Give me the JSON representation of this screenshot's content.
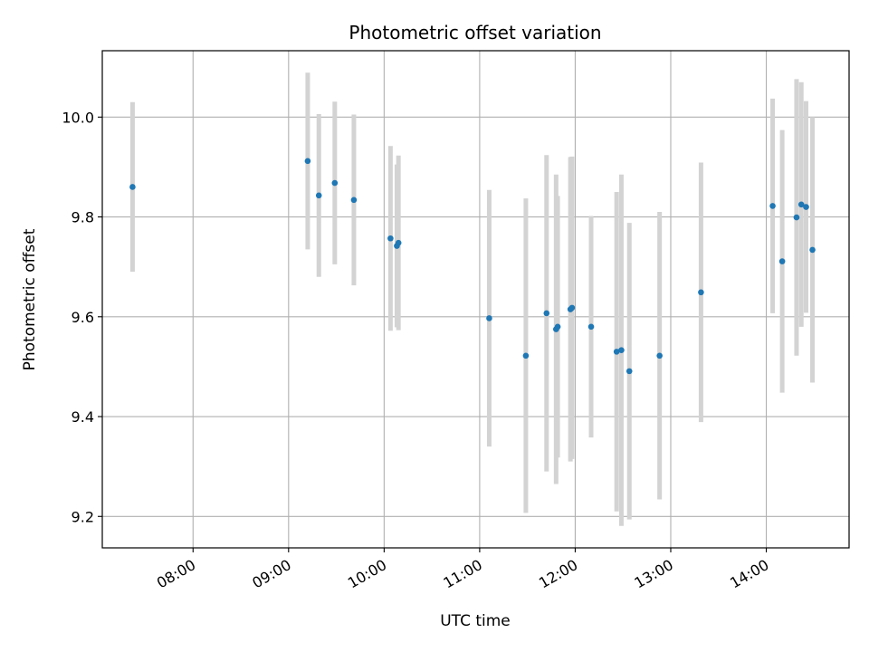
{
  "chart_data": {
    "type": "scatter",
    "title": "Photometric offset variation",
    "xlabel": "UTC time",
    "ylabel": "Photometric offset",
    "x_ticks": [
      "08:00",
      "09:00",
      "10:00",
      "11:00",
      "12:00",
      "13:00",
      "14:00"
    ],
    "y_ticks": [
      "9.2",
      "9.4",
      "9.6",
      "9.8",
      "10.0"
    ],
    "xlim": [
      "07:03",
      "14:52"
    ],
    "ylim": [
      9.137,
      10.133
    ],
    "grid": true,
    "marker_color": "#1f77b4",
    "errorbar_color": "#d3d3d3",
    "points": [
      {
        "x": "07:22",
        "y": 9.86,
        "err": 0.17
      },
      {
        "x": "09:12",
        "y": 9.912,
        "err": 0.177
      },
      {
        "x": "09:19",
        "y": 9.843,
        "err": 0.163
      },
      {
        "x": "09:29",
        "y": 9.868,
        "err": 0.163
      },
      {
        "x": "09:41",
        "y": 9.834,
        "err": 0.171
      },
      {
        "x": "10:04",
        "y": 9.757,
        "err": 0.185
      },
      {
        "x": "10:08",
        "y": 9.742,
        "err": 0.163
      },
      {
        "x": "10:09",
        "y": 9.748,
        "err": 0.175
      },
      {
        "x": "11:06",
        "y": 9.597,
        "err": 0.257
      },
      {
        "x": "11:29",
        "y": 9.522,
        "err": 0.315
      },
      {
        "x": "11:42",
        "y": 9.607,
        "err": 0.317
      },
      {
        "x": "11:48",
        "y": 9.575,
        "err": 0.31
      },
      {
        "x": "11:49",
        "y": 9.58,
        "err": 0.262
      },
      {
        "x": "11:57",
        "y": 9.615,
        "err": 0.305
      },
      {
        "x": "11:58",
        "y": 9.618,
        "err": 0.303
      },
      {
        "x": "12:10",
        "y": 9.58,
        "err": 0.222
      },
      {
        "x": "12:26",
        "y": 9.53,
        "err": 0.32
      },
      {
        "x": "12:29",
        "y": 9.533,
        "err": 0.352
      },
      {
        "x": "12:34",
        "y": 9.491,
        "err": 0.297
      },
      {
        "x": "12:53",
        "y": 9.522,
        "err": 0.288
      },
      {
        "x": "13:19",
        "y": 9.649,
        "err": 0.26
      },
      {
        "x": "14:04",
        "y": 9.822,
        "err": 0.215
      },
      {
        "x": "14:10",
        "y": 9.711,
        "err": 0.263
      },
      {
        "x": "14:19",
        "y": 9.799,
        "err": 0.277
      },
      {
        "x": "14:22",
        "y": 9.825,
        "err": 0.245
      },
      {
        "x": "14:25",
        "y": 9.82,
        "err": 0.212
      },
      {
        "x": "14:29",
        "y": 9.734,
        "err": 0.266
      }
    ]
  }
}
